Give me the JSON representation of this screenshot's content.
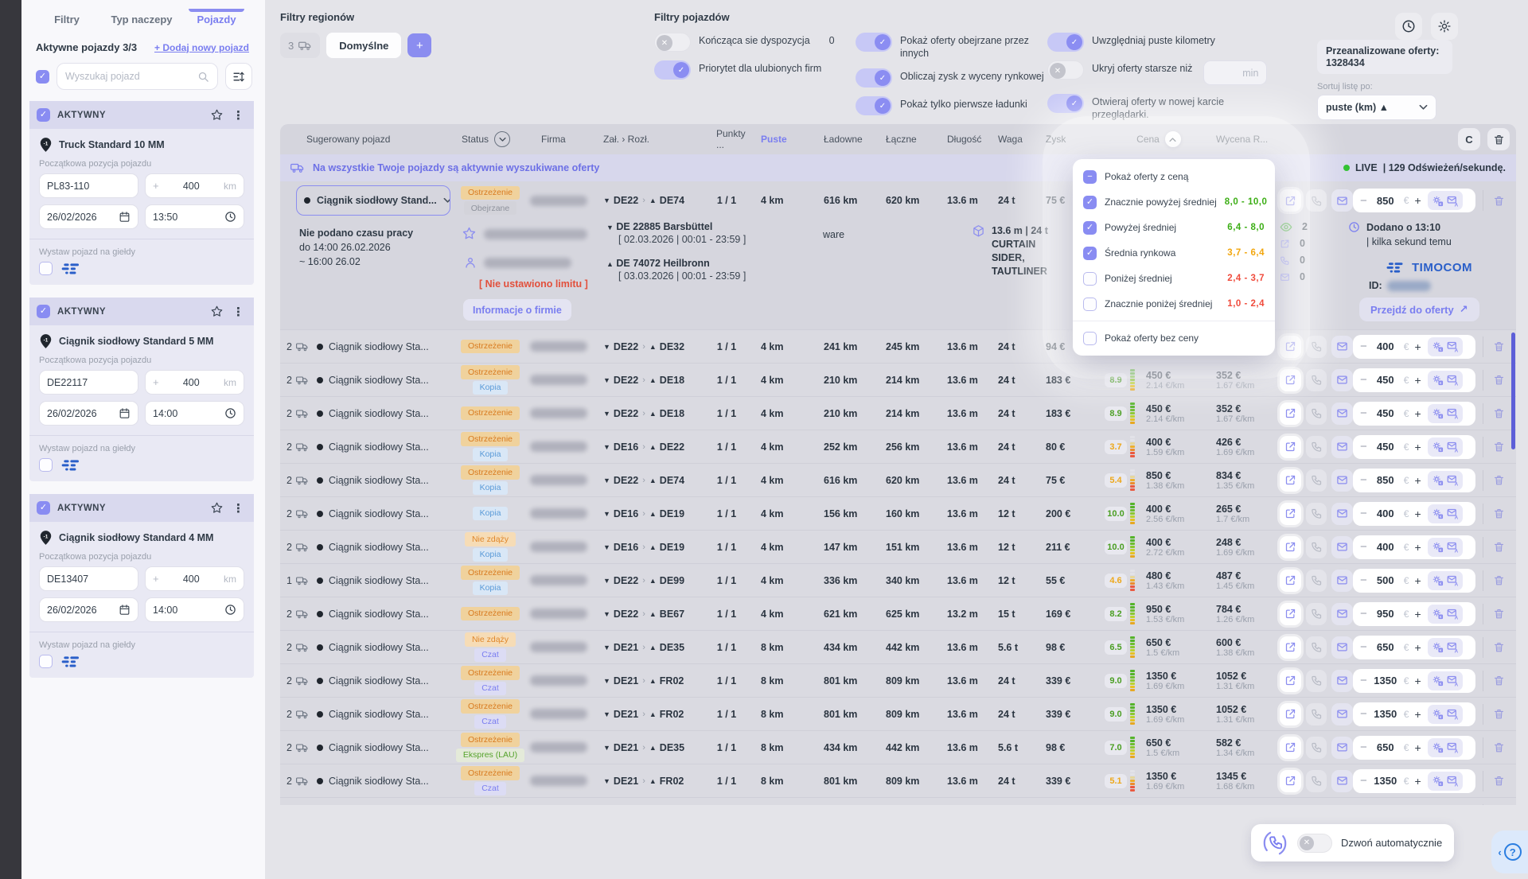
{
  "sidebar": {
    "tabs": [
      {
        "label": "Filtry",
        "active": false
      },
      {
        "label": "Typ naczepy",
        "active": false
      },
      {
        "label": "Pojazdy",
        "active": true
      }
    ],
    "active_title": "Aktywne pojazdy 3/3",
    "add_new": "+ Dodaj nowy pojazd",
    "search_placeholder": "Wyszukaj pojazd",
    "status_label": "AKTYWNY",
    "position_label": "Początkowa pozycja pojazdu",
    "listing_label": "Wystaw pojazd na giełdy",
    "radius_unit": "km",
    "vehicles": [
      {
        "name": "Truck Standard 10 MM",
        "position": "PL83-110",
        "radius": "400",
        "date": "26/02/2026",
        "time": "13:50"
      },
      {
        "name": "Ciągnik siodłowy Standard 5 MM",
        "position": "DE22117",
        "radius": "400",
        "date": "26/02/2026",
        "time": "14:00"
      },
      {
        "name": "Ciągnik siodłowy Standard 4 MM",
        "position": "DE13407",
        "radius": "400",
        "date": "26/02/2026",
        "time": "14:00"
      }
    ]
  },
  "region_filters": {
    "title": "Filtry regionów",
    "count": "3",
    "default_tab": "Domyślne",
    "add_label": "+"
  },
  "vehicle_filters": {
    "title": "Filtry pojazdów",
    "toggles": [
      {
        "label": "Kończąca sie dyspozycja",
        "on": false,
        "value": "0",
        "col": 1
      },
      {
        "label": "Priorytet dla ulubionych firm",
        "on": true,
        "col": 1
      },
      {
        "label": "Pokaż oferty obejrzane przez innych",
        "on": true,
        "col": 2
      },
      {
        "label": "Obliczaj zysk z wyceny rynkowej",
        "on": true,
        "col": 2
      },
      {
        "label": "Pokaż tylko pierwsze ładunki",
        "on": true,
        "col": 2
      },
      {
        "label": "Uwzględniaj puste kilometry",
        "on": true,
        "col": 3
      },
      {
        "label": "Ukryj oferty starsze niż",
        "on": false,
        "input_placeholder": "min",
        "col": 3
      },
      {
        "label": "Otwieraj oferty w nowej karcie przeglądarki.",
        "on": true,
        "col": 3
      }
    ]
  },
  "top_right": {
    "analyzed_label": "Przeanalizowane oferty:",
    "analyzed_value": "1328434",
    "sort_label": "Sortuj listę po:",
    "sort_value": "puste (km) ▲",
    "refresh_glyph": "C"
  },
  "table": {
    "headers": {
      "suggested": "Sugerowany pojazd",
      "status": "Status",
      "company": "Firma",
      "route": "Zał. › Rozł.",
      "points": "Punkty ...",
      "empty": "Puste",
      "loaded": "Ładowne",
      "total": "Łączne",
      "length": "Długość",
      "weight": "Waga",
      "profit": "Zysk",
      "price": "Cena",
      "valuation": "Wycena R..."
    },
    "banner": "Na wszystkie Twoje pojazdy są aktywnie wyszukiwane oferty",
    "live_label": "LIVE",
    "live_rate": "| 129 Odświeżeń/sekundę.",
    "expanded": {
      "vehicle": "Ciągnik siodłowy Stand...",
      "badges": [
        {
          "text": "Ostrzeżenie",
          "type": "warn"
        },
        {
          "text": "Obejrzane",
          "type": "seen"
        }
      ],
      "route_from": "DE22",
      "route_to": "DE74",
      "points": "1 / 1",
      "empty": "4 km",
      "loaded": "616 km",
      "total": "620 km",
      "length": "13.6 m",
      "weight": "24 t",
      "profit": "75 €",
      "stepper": "850",
      "worktime1": "Nie podano czasu pracy",
      "worktime2": "do 14:00 26.02.2026",
      "worktime3": "~ 16:00 26.02",
      "limit": "[ Nie ustawiono limitu ]",
      "company_info": "Informacje o firmie",
      "loading_place": "DE 22885 Barsbüttel",
      "loading_window": "[ 02.03.2026 | 00:01 - 23:59 ]",
      "unloading_place": "DE 74072 Heilbronn",
      "unloading_window": "[ 03.03.2026 | 00:01 - 23:59 ]",
      "cargo": "ware",
      "dims": "13.6 m | 24 t",
      "body_type": "CURTAIN SIDER, TAUTLINER",
      "views": "2",
      "shares": "0",
      "calls": "0",
      "mails": "0",
      "added1": "Dodano o 13:10",
      "added2": "| kilka sekund temu",
      "brand": "TIMOCOM",
      "id_label": "ID:",
      "goto": "Przejdź do oferty",
      "goto_arrow": "↗"
    },
    "rows": [
      {
        "count": "2",
        "vehicle": "Ciągnik siodłowy Sta...",
        "badges": [
          {
            "text": "Ostrzeżenie",
            "type": "warn"
          }
        ],
        "from": "DE22",
        "to": "DE32",
        "points": "1 / 1",
        "empty": "4 km",
        "loaded": "241 km",
        "total": "245 km",
        "length": "13.6 m",
        "weight": "24 t",
        "profit": "94 €",
        "rating": "",
        "rating_color": "",
        "price": "",
        "price_sub": "1.66 €/km",
        "valuation": "",
        "valuation_sub": "1.48 €/km",
        "stepper": "400"
      },
      {
        "count": "2",
        "vehicle": "Ciągnik siodłowy Sta...",
        "badges": [
          {
            "text": "Ostrzeżenie",
            "type": "warn"
          },
          {
            "text": "Kopia",
            "type": "copy"
          }
        ],
        "from": "DE22",
        "to": "DE18",
        "points": "1 / 1",
        "empty": "4 km",
        "loaded": "210 km",
        "total": "214 km",
        "length": "13.6 m",
        "weight": "24 t",
        "profit": "183 €",
        "rating": "8.9",
        "rating_color": "green",
        "price": "450 €",
        "price_sub": "2.14 €/km",
        "valuation": "352 €",
        "valuation_sub": "1.67 €/km",
        "stepper": "450"
      },
      {
        "count": "2",
        "vehicle": "Ciągnik siodłowy Sta...",
        "badges": [
          {
            "text": "Ostrzeżenie",
            "type": "warn"
          }
        ],
        "from": "DE22",
        "to": "DE18",
        "points": "1 / 1",
        "empty": "4 km",
        "loaded": "210 km",
        "total": "214 km",
        "length": "13.6 m",
        "weight": "24 t",
        "profit": "183 €",
        "rating": "8.9",
        "rating_color": "green",
        "price": "450 €",
        "price_sub": "2.14 €/km",
        "valuation": "352 €",
        "valuation_sub": "1.67 €/km",
        "stepper": "450"
      },
      {
        "count": "2",
        "vehicle": "Ciągnik siodłowy Sta...",
        "badges": [
          {
            "text": "Ostrzeżenie",
            "type": "warn"
          },
          {
            "text": "Kopia",
            "type": "copy"
          }
        ],
        "from": "DE16",
        "to": "DE22",
        "points": "1 / 1",
        "empty": "4 km",
        "loaded": "252 km",
        "total": "256 km",
        "length": "13.6 m",
        "weight": "24 t",
        "profit": "80 €",
        "rating": "3.7",
        "rating_color": "orange",
        "price": "400 €",
        "price_sub": "1.59 €/km",
        "valuation": "426 €",
        "valuation_sub": "1.69 €/km",
        "stepper": "450"
      },
      {
        "count": "2",
        "vehicle": "Ciągnik siodłowy Sta...",
        "badges": [
          {
            "text": "Ostrzeżenie",
            "type": "warn"
          },
          {
            "text": "Kopia",
            "type": "copy"
          }
        ],
        "from": "DE22",
        "to": "DE74",
        "points": "1 / 1",
        "empty": "4 km",
        "loaded": "616 km",
        "total": "620 km",
        "length": "13.6 m",
        "weight": "24 t",
        "profit": "75 €",
        "rating": "5.4",
        "rating_color": "orange",
        "price": "850 €",
        "price_sub": "1.38 €/km",
        "valuation": "834 €",
        "valuation_sub": "1.35 €/km",
        "stepper": "850"
      },
      {
        "count": "2",
        "vehicle": "Ciągnik siodłowy Sta...",
        "badges": [
          {
            "text": "Kopia",
            "type": "copy"
          }
        ],
        "from": "DE16",
        "to": "DE19",
        "points": "1 / 1",
        "empty": "4 km",
        "loaded": "156 km",
        "total": "160 km",
        "length": "13.6 m",
        "weight": "12 t",
        "profit": "200 €",
        "rating": "10.0",
        "rating_color": "green",
        "price": "400 €",
        "price_sub": "2.56 €/km",
        "valuation": "265 €",
        "valuation_sub": "1.7 €/km",
        "stepper": "400"
      },
      {
        "count": "2",
        "vehicle": "Ciągnik siodłowy Sta...",
        "badges": [
          {
            "text": "Nie zdąży",
            "type": "late"
          },
          {
            "text": "Kopia",
            "type": "copy"
          }
        ],
        "from": "DE16",
        "to": "DE19",
        "points": "1 / 1",
        "empty": "4 km",
        "loaded": "147 km",
        "total": "151 km",
        "length": "13.6 m",
        "weight": "12 t",
        "profit": "211 €",
        "rating": "10.0",
        "rating_color": "green",
        "price": "400 €",
        "price_sub": "2.72 €/km",
        "valuation": "248 €",
        "valuation_sub": "1.69 €/km",
        "stepper": "400"
      },
      {
        "count": "1",
        "vehicle": "Ciągnik siodłowy Sta...",
        "badges": [
          {
            "text": "Ostrzeżenie",
            "type": "warn"
          },
          {
            "text": "Kopia",
            "type": "copy"
          }
        ],
        "from": "DE22",
        "to": "DE99",
        "points": "1 / 1",
        "empty": "4 km",
        "loaded": "336 km",
        "total": "340 km",
        "length": "13.6 m",
        "weight": "12 t",
        "profit": "55 €",
        "rating": "4.6",
        "rating_color": "orange",
        "price": "480 €",
        "price_sub": "1.43 €/km",
        "valuation": "487 €",
        "valuation_sub": "1.45 €/km",
        "stepper": "500"
      },
      {
        "count": "2",
        "vehicle": "Ciągnik siodłowy Sta...",
        "badges": [
          {
            "text": "Ostrzeżenie",
            "type": "warn"
          }
        ],
        "from": "DE22",
        "to": "BE67",
        "points": "1 / 1",
        "empty": "4 km",
        "loaded": "621 km",
        "total": "625 km",
        "length": "13.2 m",
        "weight": "15 t",
        "profit": "169 €",
        "rating": "8.2",
        "rating_color": "green",
        "price": "950 €",
        "price_sub": "1.53 €/km",
        "valuation": "784 €",
        "valuation_sub": "1.26 €/km",
        "stepper": "950"
      },
      {
        "count": "2",
        "vehicle": "Ciągnik siodłowy Sta...",
        "badges": [
          {
            "text": "Nie zdąży",
            "type": "late"
          },
          {
            "text": "Czat",
            "type": "chat"
          }
        ],
        "from": "DE21",
        "to": "DE35",
        "points": "1 / 1",
        "empty": "8 km",
        "loaded": "434 km",
        "total": "442 km",
        "length": "13.6 m",
        "weight": "5.6 t",
        "profit": "98 €",
        "rating": "6.5",
        "rating_color": "green",
        "price": "650 €",
        "price_sub": "1.5 €/km",
        "valuation": "600 €",
        "valuation_sub": "1.38 €/km",
        "stepper": "650"
      },
      {
        "count": "2",
        "vehicle": "Ciągnik siodłowy Sta...",
        "badges": [
          {
            "text": "Ostrzeżenie",
            "type": "warn"
          },
          {
            "text": "Czat",
            "type": "chat"
          }
        ],
        "from": "DE21",
        "to": "FR02",
        "points": "1 / 1",
        "empty": "8 km",
        "loaded": "801 km",
        "total": "809 km",
        "length": "13.6 m",
        "weight": "24 t",
        "profit": "339 €",
        "rating": "9.0",
        "rating_color": "green",
        "price": "1350 €",
        "price_sub": "1.69 €/km",
        "valuation": "1052 €",
        "valuation_sub": "1.31 €/km",
        "stepper": "1350"
      },
      {
        "count": "2",
        "vehicle": "Ciągnik siodłowy Sta...",
        "badges": [
          {
            "text": "Ostrzeżenie",
            "type": "warn"
          },
          {
            "text": "Czat",
            "type": "chat"
          }
        ],
        "from": "DE21",
        "to": "FR02",
        "points": "1 / 1",
        "empty": "8 km",
        "loaded": "801 km",
        "total": "809 km",
        "length": "13.6 m",
        "weight": "24 t",
        "profit": "339 €",
        "rating": "9.0",
        "rating_color": "green",
        "price": "1350 €",
        "price_sub": "1.69 €/km",
        "valuation": "1052 €",
        "valuation_sub": "1.31 €/km",
        "stepper": "1350"
      },
      {
        "count": "2",
        "vehicle": "Ciągnik siodłowy Sta...",
        "badges": [
          {
            "text": "Ostrzeżenie",
            "type": "warn"
          },
          {
            "text": "Ekspres (LAU)",
            "type": "express"
          }
        ],
        "from": "DE21",
        "to": "DE35",
        "points": "1 / 1",
        "empty": "8 km",
        "loaded": "434 km",
        "total": "442 km",
        "length": "13.6 m",
        "weight": "5.6 t",
        "profit": "98 €",
        "rating": "7.0",
        "rating_color": "green",
        "price": "650 €",
        "price_sub": "1.5 €/km",
        "valuation": "582 €",
        "valuation_sub": "1.34 €/km",
        "stepper": "650"
      },
      {
        "count": "2",
        "vehicle": "Ciągnik siodłowy Sta...",
        "badges": [
          {
            "text": "Ostrzeżenie",
            "type": "warn"
          },
          {
            "text": "Czat",
            "type": "chat"
          }
        ],
        "from": "DE21",
        "to": "FR02",
        "points": "1 / 1",
        "empty": "8 km",
        "loaded": "801 km",
        "total": "809 km",
        "length": "13.6 m",
        "weight": "24 t",
        "profit": "339 €",
        "rating": "5.1",
        "rating_color": "orange",
        "price": "1350 €",
        "price_sub": "1.69 €/km",
        "valuation": "1345 €",
        "valuation_sub": "1.68 €/km",
        "stepper": "1350"
      },
      {
        "count": "",
        "vehicle": "",
        "badges": [
          {
            "text": "Ostrzeżenie",
            "type": "warn"
          }
        ],
        "from": "",
        "to": "",
        "points": "",
        "empty": "",
        "loaded": "",
        "total": "",
        "length": "",
        "weight": "",
        "profit": "",
        "rating": "",
        "rating_color": "",
        "price": "",
        "price_sub": "",
        "valuation": "",
        "valuation_sub": "",
        "stepper": "",
        "partial": true
      }
    ]
  },
  "price_popup": {
    "items": [
      {
        "label": "Pokaż oferty z ceną",
        "state": "indeterminate",
        "range": "",
        "color": ""
      },
      {
        "label": "Znacznie powyżej średniej",
        "state": "checked",
        "range": "8,0 - 10,0",
        "color": "green"
      },
      {
        "label": "Powyżej średniej",
        "state": "checked",
        "range": "6,4 - 8,0",
        "color": "green"
      },
      {
        "label": "Średnia rynkowa",
        "state": "checked",
        "range": "3,7 - 6,4",
        "color": "orange"
      },
      {
        "label": "Poniżej średniej",
        "state": "unchecked",
        "range": "2,4 - 3,7",
        "color": "red"
      },
      {
        "label": "Znacznie poniżej średniej",
        "state": "unchecked",
        "range": "1,0 - 2,4",
        "color": "red"
      },
      {
        "label": "Pokaż oferty bez ceny",
        "state": "unchecked",
        "range": "",
        "color": "",
        "divider": true
      }
    ]
  },
  "call_bar": {
    "label": "Dzwoń automatycznie"
  },
  "help": {
    "label": "?",
    "chevron": "‹"
  }
}
